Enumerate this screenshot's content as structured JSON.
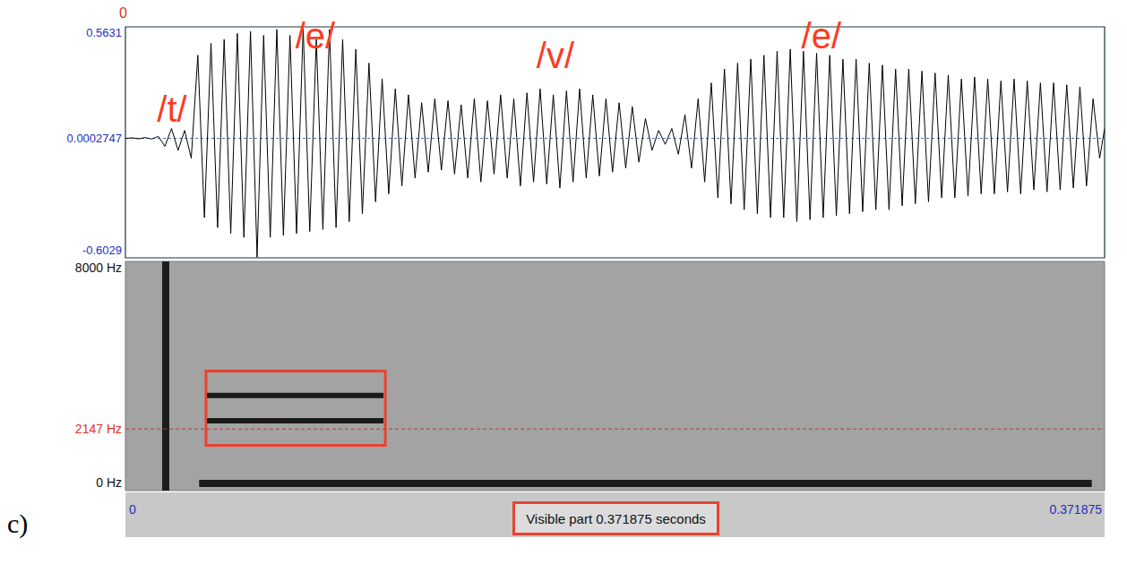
{
  "panel_label": "c)",
  "chart_data": [
    {
      "type": "line",
      "color": "#000000",
      "xlim": [
        0,
        0.371875
      ],
      "ylim": [
        -0.6029,
        0.5631
      ],
      "yticks": [
        -0.6029,
        0.0002747,
        0.5631
      ],
      "tick_labels": "y",
      "cursor": 0,
      "x": [
        0,
        0.0025,
        0.005,
        0.0075,
        0.01,
        0.0125,
        0.015,
        0.0175,
        0.02,
        0.0225,
        0.025,
        0.0275,
        0.03,
        0.0325,
        0.035,
        0.0375,
        0.04,
        0.0425,
        0.045,
        0.0475,
        0.05,
        0.0525,
        0.055,
        0.0575,
        0.06,
        0.0625,
        0.065,
        0.0675,
        0.07,
        0.0725,
        0.075,
        0.0775,
        0.08,
        0.0825,
        0.085,
        0.0875,
        0.09,
        0.0925,
        0.095,
        0.0975,
        0.1,
        0.1025,
        0.105,
        0.1075,
        0.11,
        0.1125,
        0.115,
        0.1175,
        0.12,
        0.1225,
        0.125,
        0.1275,
        0.13,
        0.1325,
        0.135,
        0.1375,
        0.14,
        0.1425,
        0.145,
        0.1475,
        0.15,
        0.1525,
        0.155,
        0.1575,
        0.16,
        0.1625,
        0.165,
        0.1675,
        0.17,
        0.1725,
        0.175,
        0.1775,
        0.18,
        0.1825,
        0.185,
        0.1875,
        0.19,
        0.1925,
        0.195,
        0.1975,
        0.2,
        0.2025,
        0.205,
        0.2075,
        0.21,
        0.2125,
        0.215,
        0.2175,
        0.22,
        0.2225,
        0.225,
        0.2275,
        0.23,
        0.2325,
        0.235,
        0.2375,
        0.24,
        0.2425,
        0.245,
        0.2475,
        0.25,
        0.2525,
        0.255,
        0.2575,
        0.26,
        0.2625,
        0.265,
        0.2675,
        0.27,
        0.2725,
        0.275,
        0.2775,
        0.28,
        0.2825,
        0.285,
        0.2875,
        0.29,
        0.2925,
        0.295,
        0.2975,
        0.3,
        0.3025,
        0.305,
        0.3075,
        0.31,
        0.3125,
        0.315,
        0.3175,
        0.32,
        0.3225,
        0.325,
        0.3275,
        0.33,
        0.3325,
        0.335,
        0.3375,
        0.34,
        0.3425,
        0.345,
        0.3475,
        0.35,
        0.3525,
        0.355,
        0.3575,
        0.36,
        0.3625,
        0.365,
        0.3675,
        0.37,
        0.371875
      ],
      "values": [
        0,
        0.003,
        -0.002,
        0.004,
        -0.003,
        0.01,
        -0.04,
        0.05,
        -0.06,
        0.04,
        -0.1,
        0.42,
        -0.4,
        0.48,
        -0.45,
        0.5,
        -0.48,
        0.53,
        -0.5,
        0.54,
        -0.6,
        0.52,
        -0.5,
        0.55,
        -0.49,
        0.52,
        -0.48,
        0.56,
        -0.47,
        0.5,
        -0.46,
        0.55,
        -0.45,
        0.5,
        -0.42,
        0.45,
        -0.38,
        0.38,
        -0.32,
        0.3,
        -0.28,
        0.25,
        -0.24,
        0.22,
        -0.2,
        0.18,
        -0.17,
        0.2,
        -0.16,
        0.19,
        -0.18,
        0.17,
        -0.2,
        0.2,
        -0.22,
        0.19,
        -0.18,
        0.22,
        -0.2,
        0.2,
        -0.24,
        0.23,
        -0.22,
        0.25,
        -0.23,
        0.22,
        -0.25,
        0.24,
        -0.22,
        0.25,
        -0.2,
        0.22,
        -0.19,
        0.2,
        -0.17,
        0.18,
        -0.15,
        0.16,
        -0.12,
        0.1,
        -0.06,
        0.04,
        -0.03,
        0.05,
        -0.08,
        0.12,
        -0.15,
        0.2,
        -0.22,
        0.28,
        -0.3,
        0.35,
        -0.33,
        0.38,
        -0.36,
        0.4,
        -0.38,
        0.42,
        -0.4,
        0.44,
        -0.4,
        0.45,
        -0.42,
        0.44,
        -0.41,
        0.43,
        -0.4,
        0.42,
        -0.39,
        0.4,
        -0.38,
        0.4,
        -0.37,
        0.38,
        -0.36,
        0.37,
        -0.36,
        0.35,
        -0.34,
        0.35,
        -0.33,
        0.34,
        -0.32,
        0.33,
        -0.3,
        0.32,
        -0.3,
        0.3,
        -0.29,
        0.31,
        -0.28,
        0.3,
        -0.28,
        0.29,
        -0.27,
        0.3,
        -0.28,
        0.29,
        -0.26,
        0.28,
        -0.27,
        0.28,
        -0.26,
        0.27,
        -0.25,
        0.26,
        -0.24,
        0.2,
        -0.1,
        0.05
      ],
      "annotations": [
        {
          "text": "/t/",
          "x": 0.0177,
          "y": 0.147
        },
        {
          "text": "/e/",
          "x": 0.0721,
          "y": 0.518
        },
        {
          "text": "/v/",
          "x": 0.1633,
          "y": 0.418
        },
        {
          "text": "/e/",
          "x": 0.2643,
          "y": 0.518
        }
      ]
    },
    {
      "type": "spectrogram",
      "xlim": [
        0,
        0.371875
      ],
      "xticks": [
        0,
        0.371875
      ],
      "ylim": [
        0,
        8000
      ],
      "yticks": [
        {
          "value": 0,
          "label": "0 Hz"
        },
        {
          "value": 2147,
          "label": "2147 Hz"
        },
        {
          "value": 8000,
          "label": "8000 Hz"
        }
      ],
      "series": [
        {
          "color": "#1c1c1c",
          "x": [
            0.0153,
            0.0153
          ],
          "values": [
            0,
            8000
          ]
        },
        {
          "color": "#1c1c1c",
          "x": [
            0.028,
            0.367
          ],
          "values": [
            250,
            250
          ]
        },
        {
          "color": "#1c1c1c",
          "x": [
            0.031,
            0.098
          ],
          "values": [
            2435,
            2435
          ]
        },
        {
          "color": "#1c1c1c",
          "x": [
            0.031,
            0.098
          ],
          "values": [
            3320,
            3320
          ]
        }
      ],
      "highlight": {
        "x": [
          0.0306,
          0.0987
        ],
        "y": [
          1581,
          4174
        ],
        "color": "#e8432f"
      },
      "footer": "Visible part 0.371875 seconds"
    }
  ]
}
